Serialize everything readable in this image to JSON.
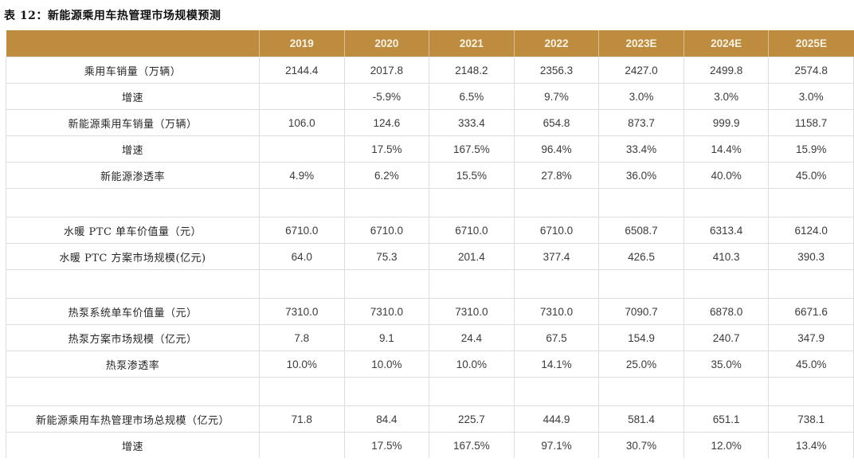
{
  "title": "表 12：新能源乘用车热管理市场规模预测",
  "colors": {
    "header_bg": "#be8c3e",
    "header_text": "#f8f3e6",
    "grid_line": "#dedede",
    "title_text": "#111111",
    "label_text": "#262626",
    "value_text": "#3b3b3b"
  },
  "table": {
    "columns": [
      "",
      "2019",
      "2020",
      "2021",
      "2022",
      "2023E",
      "2024E",
      "2025E"
    ],
    "rows": [
      {
        "label": "乘用车销量（万辆）",
        "blank": false,
        "values": [
          "2144.4",
          "2017.8",
          "2148.2",
          "2356.3",
          "2427.0",
          "2499.8",
          "2574.8"
        ]
      },
      {
        "label": "增速",
        "blank": false,
        "values": [
          "",
          "-5.9%",
          "6.5%",
          "9.7%",
          "3.0%",
          "3.0%",
          "3.0%"
        ]
      },
      {
        "label": "新能源乘用车销量（万辆）",
        "blank": false,
        "values": [
          "106.0",
          "124.6",
          "333.4",
          "654.8",
          "873.7",
          "999.9",
          "1158.7"
        ]
      },
      {
        "label": "增速",
        "blank": false,
        "values": [
          "",
          "17.5%",
          "167.5%",
          "96.4%",
          "33.4%",
          "14.4%",
          "15.9%"
        ]
      },
      {
        "label": "新能源渗透率",
        "blank": false,
        "values": [
          "4.9%",
          "6.2%",
          "15.5%",
          "27.8%",
          "36.0%",
          "40.0%",
          "45.0%"
        ]
      },
      {
        "label": "",
        "blank": true,
        "values": [
          "",
          "",
          "",
          "",
          "",
          "",
          ""
        ]
      },
      {
        "label": "水暖 PTC 单车价值量（元）",
        "blank": false,
        "values": [
          "6710.0",
          "6710.0",
          "6710.0",
          "6710.0",
          "6508.7",
          "6313.4",
          "6124.0"
        ]
      },
      {
        "label": "水暖 PTC 方案市场规模(亿元)",
        "blank": false,
        "values": [
          "64.0",
          "75.3",
          "201.4",
          "377.4",
          "426.5",
          "410.3",
          "390.3"
        ]
      },
      {
        "label": "",
        "blank": true,
        "values": [
          "",
          "",
          "",
          "",
          "",
          "",
          ""
        ]
      },
      {
        "label": "热泵系统单车价值量（元）",
        "blank": false,
        "values": [
          "7310.0",
          "7310.0",
          "7310.0",
          "7310.0",
          "7090.7",
          "6878.0",
          "6671.6"
        ]
      },
      {
        "label": "热泵方案市场规模（亿元）",
        "blank": false,
        "values": [
          "7.8",
          "9.1",
          "24.4",
          "67.5",
          "154.9",
          "240.7",
          "347.9"
        ]
      },
      {
        "label": "热泵渗透率",
        "blank": false,
        "values": [
          "10.0%",
          "10.0%",
          "10.0%",
          "14.1%",
          "25.0%",
          "35.0%",
          "45.0%"
        ]
      },
      {
        "label": "",
        "blank": true,
        "values": [
          "",
          "",
          "",
          "",
          "",
          "",
          ""
        ]
      },
      {
        "label": "新能源乘用车热管理市场总规模（亿元）",
        "blank": false,
        "values": [
          "71.8",
          "84.4",
          "225.7",
          "444.9",
          "581.4",
          "651.1",
          "738.1"
        ]
      },
      {
        "label": "增速",
        "blank": false,
        "values": [
          "",
          "17.5%",
          "167.5%",
          "97.1%",
          "30.7%",
          "12.0%",
          "13.4%"
        ]
      }
    ]
  }
}
